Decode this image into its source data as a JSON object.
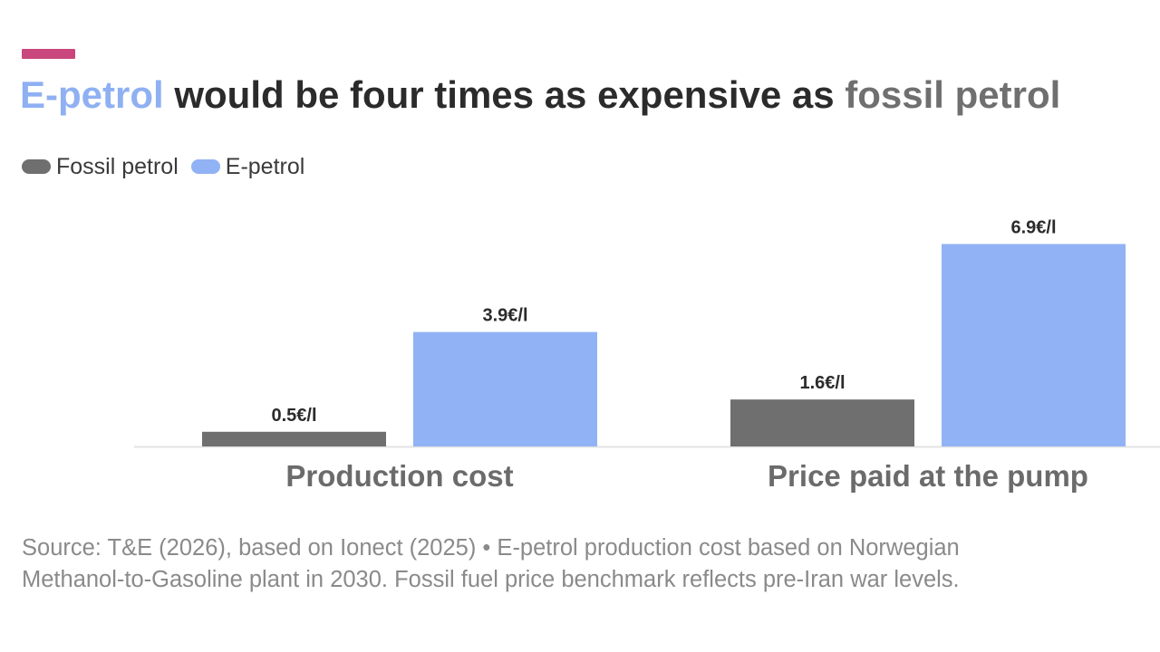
{
  "header": {
    "title_part1": "E-petrol",
    "title_part2": " would be four times as expensive as ",
    "title_part3": "fossil petrol"
  },
  "colors": {
    "accent": "#c9477c",
    "fossil": "#6f6f6f",
    "epetrol": "#91b2f4",
    "title_epetrol": "#8fb0f2",
    "title_fossil": "#6f6f6f",
    "baseline": "#e3e3e3"
  },
  "legend": {
    "items": [
      {
        "label": "Fossil petrol",
        "color": "#6f6f6f"
      },
      {
        "label": "E-petrol",
        "color": "#91b2f4"
      }
    ]
  },
  "chart_data": {
    "type": "bar",
    "categories": [
      "Production cost",
      "Price paid at the pump"
    ],
    "series": [
      {
        "name": "Fossil petrol",
        "values": [
          0.5,
          1.6
        ],
        "labels": [
          "0.5€/l",
          "1.6€/l"
        ],
        "color": "#6f6f6f"
      },
      {
        "name": "E-petrol",
        "values": [
          3.9,
          6.9
        ],
        "labels": [
          "3.9€/l",
          "6.9€/l"
        ],
        "color": "#91b2f4"
      }
    ],
    "unit": "€/l",
    "ylim": [
      0,
      7.2
    ],
    "grid": false,
    "legend_position": "top-left"
  },
  "footer": {
    "source_line1": "Source: T&E (2026), based on Ionect (2025) • E-petrol production cost based on Norwegian",
    "source_line2": "Methanol-to-Gasoline plant in 2030. Fossil fuel price benchmark reflects pre-Iran war levels."
  }
}
